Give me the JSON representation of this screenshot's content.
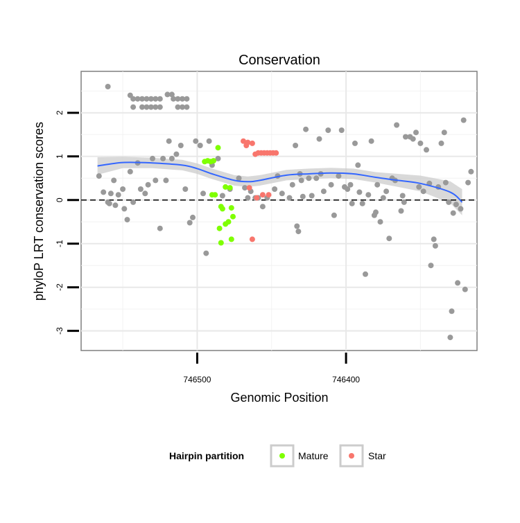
{
  "chart_data": {
    "type": "scatter",
    "title": "Conservation",
    "xlabel": "Genomic Position",
    "ylabel": "phyloP LRT conservation scores",
    "x_reversed": true,
    "xlim": [
      746578,
      746312
    ],
    "ylim": [
      -3.45,
      2.95
    ],
    "x_ticks": [
      746500,
      746400
    ],
    "y_ticks": [
      -3,
      -2,
      -1,
      0,
      1,
      2
    ],
    "x_minor_gridlines": [
      746550,
      746450,
      746350
    ],
    "y_minor_gridlines": [
      -2.5,
      -1.5,
      -0.5,
      0.5,
      1.5,
      2.5
    ],
    "grid": true,
    "reference_line": {
      "y": 0,
      "style": "dashed"
    },
    "smooth": {
      "method": "loess",
      "color": "#3366FF",
      "x": [
        746567,
        746550,
        746530,
        746510,
        746500,
        746490,
        746475,
        746466,
        746458,
        746440,
        746425,
        746410,
        746395,
        746380,
        746365,
        746350,
        746330,
        746322
      ],
      "y": [
        0.78,
        0.86,
        0.85,
        0.8,
        0.72,
        0.6,
        0.45,
        0.42,
        0.45,
        0.57,
        0.6,
        0.62,
        0.6,
        0.52,
        0.45,
        0.38,
        0.18,
        -0.05
      ],
      "se": [
        0.2,
        0.13,
        0.12,
        0.12,
        0.12,
        0.12,
        0.12,
        0.12,
        0.12,
        0.12,
        0.12,
        0.12,
        0.12,
        0.12,
        0.15,
        0.18,
        0.25,
        0.3
      ]
    },
    "legend": {
      "title": "Hairpin partition",
      "position": "bottom",
      "entries": [
        {
          "label": "Mature",
          "color": "#7FFF00"
        },
        {
          "label": "Star",
          "color": "#F8766D"
        }
      ]
    },
    "series": [
      {
        "color": "#999999",
        "points": [
          [
            746560,
            2.6
          ],
          [
            746545,
            2.4
          ],
          [
            746543,
            2.32
          ],
          [
            746540,
            2.32
          ],
          [
            746537,
            2.32
          ],
          [
            746534,
            2.32
          ],
          [
            746531,
            2.32
          ],
          [
            746528,
            2.32
          ],
          [
            746525,
            2.32
          ],
          [
            746543,
            2.13
          ],
          [
            746537,
            2.13
          ],
          [
            746534,
            2.13
          ],
          [
            746531,
            2.13
          ],
          [
            746528,
            2.13
          ],
          [
            746525,
            2.13
          ],
          [
            746520,
            2.42
          ],
          [
            746517,
            2.42
          ],
          [
            746516,
            2.32
          ],
          [
            746513,
            2.32
          ],
          [
            746510,
            2.32
          ],
          [
            746507,
            2.32
          ],
          [
            746513,
            2.13
          ],
          [
            746510,
            2.13
          ],
          [
            746507,
            2.13
          ],
          [
            746566,
            0.55
          ],
          [
            746563,
            0.18
          ],
          [
            746560,
            -0.05
          ],
          [
            746559,
            -0.08
          ],
          [
            746558,
            0.15
          ],
          [
            746556,
            0.45
          ],
          [
            746555,
            -0.12
          ],
          [
            746553,
            0.12
          ],
          [
            746550,
            0.25
          ],
          [
            746549,
            -0.2
          ],
          [
            746547,
            -0.45
          ],
          [
            746545,
            0.65
          ],
          [
            746543,
            -0.05
          ],
          [
            746540,
            0.85
          ],
          [
            746538,
            0.25
          ],
          [
            746535,
            0.15
          ],
          [
            746533,
            0.35
          ],
          [
            746530,
            0.95
          ],
          [
            746528,
            0.45
          ],
          [
            746525,
            -0.65
          ],
          [
            746523,
            0.95
          ],
          [
            746521,
            0.45
          ],
          [
            746519,
            1.35
          ],
          [
            746517,
            0.95
          ],
          [
            746514,
            1.05
          ],
          [
            746511,
            1.25
          ],
          [
            746508,
            0.25
          ],
          [
            746505,
            -0.52
          ],
          [
            746503,
            -0.4
          ],
          [
            746501,
            1.35
          ],
          [
            746498,
            1.25
          ],
          [
            746496,
            0.15
          ],
          [
            746494,
            -1.22
          ],
          [
            746492,
            1.35
          ],
          [
            746490,
            0.8
          ],
          [
            746486,
            0.95
          ],
          [
            746483,
            0.1
          ],
          [
            746478,
            0.25
          ],
          [
            746472,
            0.5
          ],
          [
            746468,
            0.28
          ],
          [
            746466,
            0.05
          ],
          [
            746464,
            0.2
          ],
          [
            746461,
            0.05
          ],
          [
            746459,
            0.05
          ],
          [
            746456,
            -0.15
          ],
          [
            746453,
            0.05
          ],
          [
            746448,
            0.25
          ],
          [
            746446,
            0.55
          ],
          [
            746443,
            0.15
          ],
          [
            746438,
            0.05
          ],
          [
            746436,
            0.35
          ],
          [
            746434,
            1.25
          ],
          [
            746433,
            -0.6
          ],
          [
            746432,
            -0.72
          ],
          [
            746431,
            0.6
          ],
          [
            746430,
            0.45
          ],
          [
            746429,
            0.08
          ],
          [
            746427,
            1.62
          ],
          [
            746425,
            0.5
          ],
          [
            746423,
            0.1
          ],
          [
            746420,
            0.5
          ],
          [
            746418,
            1.4
          ],
          [
            746417,
            0.6
          ],
          [
            746415,
            0.2
          ],
          [
            746412,
            1.6
          ],
          [
            746410,
            0.35
          ],
          [
            746408,
            -0.35
          ],
          [
            746405,
            0.55
          ],
          [
            746403,
            1.6
          ],
          [
            746401,
            0.3
          ],
          [
            746399,
            0.25
          ],
          [
            746397,
            0.35
          ],
          [
            746396,
            -0.08
          ],
          [
            746394,
            1.3
          ],
          [
            746392,
            0.8
          ],
          [
            746391,
            0.18
          ],
          [
            746389,
            -0.08
          ],
          [
            746387,
            -1.7
          ],
          [
            746385,
            0.12
          ],
          [
            746383,
            1.35
          ],
          [
            746381,
            -0.35
          ],
          [
            746380,
            -0.28
          ],
          [
            746379,
            0.35
          ],
          [
            746377,
            -0.5
          ],
          [
            746375,
            0.05
          ],
          [
            746373,
            0.2
          ],
          [
            746371,
            -0.88
          ],
          [
            746369,
            0.5
          ],
          [
            746367,
            0.45
          ],
          [
            746366,
            1.72
          ],
          [
            746363,
            -0.25
          ],
          [
            746362,
            0.1
          ],
          [
            746361,
            -0.05
          ],
          [
            746360,
            1.45
          ],
          [
            746357,
            1.45
          ],
          [
            746355,
            1.4
          ],
          [
            746353,
            1.55
          ],
          [
            746351,
            0.3
          ],
          [
            746350,
            1.3
          ],
          [
            746348,
            0.2
          ],
          [
            746346,
            1.15
          ],
          [
            746344,
            0.38
          ],
          [
            746343,
            -1.5
          ],
          [
            746341,
            -0.9
          ],
          [
            746340,
            -1.05
          ],
          [
            746338,
            0.3
          ],
          [
            746336,
            1.3
          ],
          [
            746334,
            1.55
          ],
          [
            746333,
            0.4
          ],
          [
            746331,
            -0.05
          ],
          [
            746330,
            -3.15
          ],
          [
            746329,
            -2.55
          ],
          [
            746328,
            -0.3
          ],
          [
            746326,
            -0.1
          ],
          [
            746325,
            -1.9
          ],
          [
            746323,
            -0.2
          ],
          [
            746321,
            1.83
          ],
          [
            746320,
            -2.05
          ],
          [
            746318,
            0.4
          ],
          [
            746316,
            0.65
          ]
        ]
      },
      {
        "name": "Mature",
        "color": "#7FFF00",
        "points": [
          [
            746495,
            0.88
          ],
          [
            746493,
            0.9
          ],
          [
            746491,
            0.88
          ],
          [
            746489,
            0.9
          ],
          [
            746486,
            1.2
          ],
          [
            746490,
            0.12
          ],
          [
            746488,
            0.12
          ],
          [
            746484,
            -0.15
          ],
          [
            746483,
            -0.2
          ],
          [
            746485,
            -0.65
          ],
          [
            746481,
            -0.55
          ],
          [
            746479,
            -0.5
          ],
          [
            746481,
            0.3
          ],
          [
            746478,
            0.28
          ],
          [
            746477,
            -0.18
          ],
          [
            746476,
            -0.38
          ],
          [
            746484,
            -0.98
          ],
          [
            746477,
            -0.9
          ]
        ]
      },
      {
        "name": "Star",
        "color": "#F8766D",
        "points": [
          [
            746469,
            1.35
          ],
          [
            746467,
            1.25
          ],
          [
            746466,
            1.32
          ],
          [
            746463,
            1.3
          ],
          [
            746461,
            1.05
          ],
          [
            746459,
            1.08
          ],
          [
            746457,
            1.08
          ],
          [
            746455,
            1.08
          ],
          [
            746453,
            1.08
          ],
          [
            746451,
            1.08
          ],
          [
            746449,
            1.08
          ],
          [
            746447,
            1.08
          ],
          [
            746465,
            0.28
          ],
          [
            746460,
            0.05
          ],
          [
            746456,
            0.12
          ],
          [
            746452,
            0.12
          ],
          [
            746463,
            -0.9
          ]
        ]
      }
    ]
  }
}
